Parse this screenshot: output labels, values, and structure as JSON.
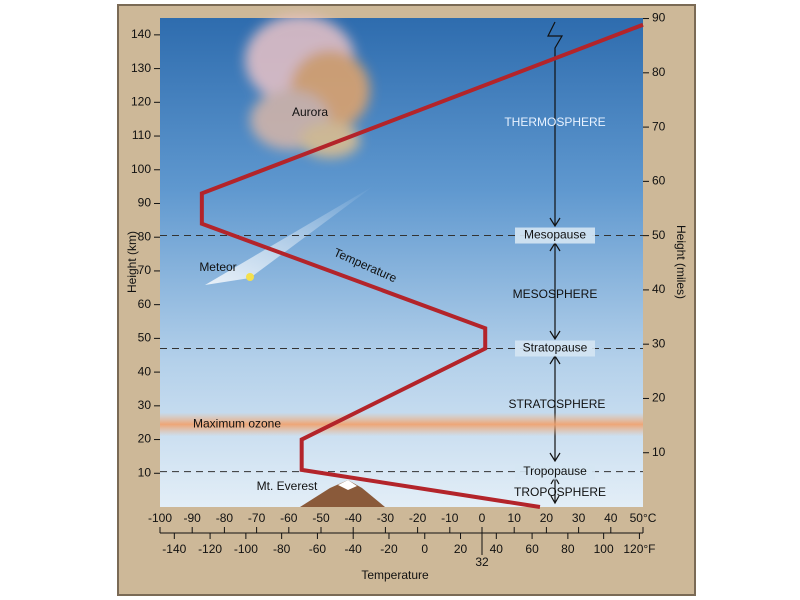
{
  "chart_data": {
    "type": "line",
    "x": [
      18,
      -56,
      -56,
      1,
      1,
      -87,
      -87,
      50
    ],
    "series": [
      {
        "name": "Temperature",
        "color": "#b3242a",
        "values": [
          0,
          11,
          20,
          47,
          53,
          84,
          93,
          143
        ]
      }
    ],
    "xlim": [
      -100,
      50
    ],
    "ylim": [
      0,
      145
    ],
    "y2lim": [
      0,
      90.1
    ],
    "xticks": [
      -100,
      -90,
      -80,
      -70,
      -60,
      -50,
      -40,
      -30,
      -20,
      -10,
      0,
      10,
      20,
      30,
      40,
      {
        "value": 50,
        "label": "50°C"
      }
    ],
    "x2ticks": [
      -140,
      -120,
      -100,
      -80,
      -60,
      -40,
      -20,
      0,
      20,
      40,
      60,
      80,
      100,
      {
        "value": 120,
        "label": "120°F"
      },
      32
    ],
    "yticks": [
      10,
      20,
      30,
      40,
      50,
      60,
      70,
      80,
      90,
      100,
      110,
      120,
      130,
      140
    ],
    "y2ticks": [
      10,
      20,
      30,
      40,
      50,
      60,
      70,
      80,
      90
    ],
    "xlabel": "Temperature",
    "ylabel": "Height (km)",
    "y2label": "Height (miles)",
    "boundaries": [
      {
        "label": "Mesopause",
        "value": 80.5
      },
      {
        "label": "Stratopause",
        "value": 47
      },
      {
        "label": "Tropopause",
        "value": 10.5
      }
    ],
    "ozone": {
      "label": "Maximum ozone",
      "range": [
        21,
        28
      ]
    },
    "annotations": [
      "Aurora",
      "Meteor",
      "Mt. Everest",
      "THERMOSPHERE",
      "MESOSPHERE",
      "STRATOSPHERE",
      "TROPOSPHERE"
    ]
  }
}
